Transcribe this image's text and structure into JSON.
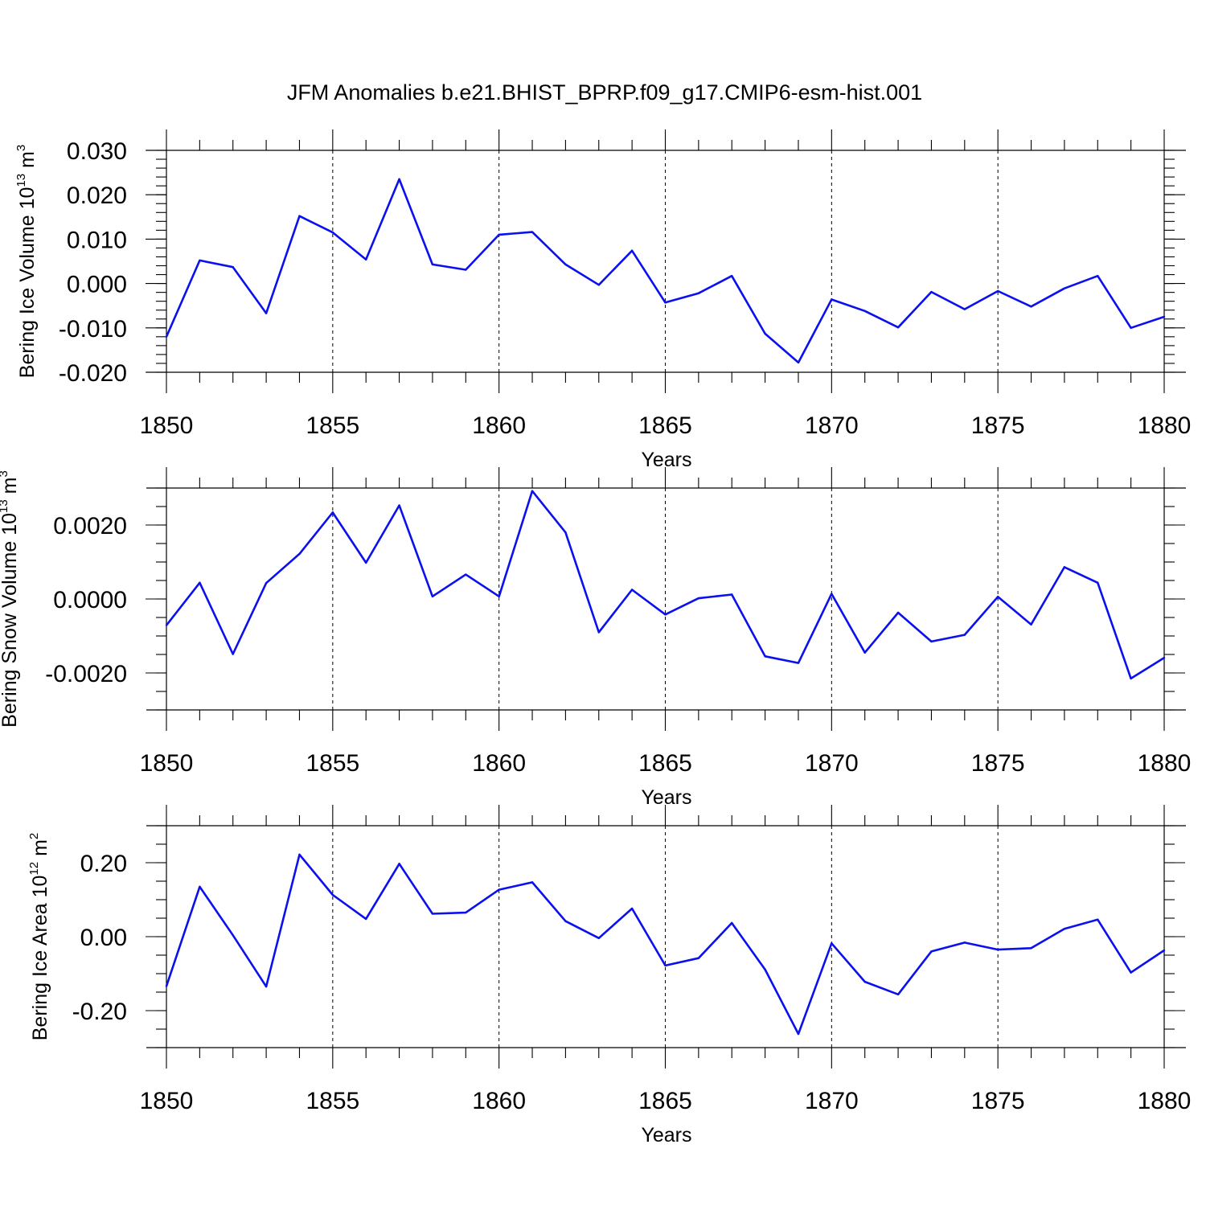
{
  "chart_data": {
    "type": "line",
    "title": "JFM Anomalies b.e21.BHIST_BPRP.f09_g17.CMIP6-esm-hist.001",
    "colors": {
      "line": "#0a10ee",
      "axes": "#000000"
    },
    "panels": [
      {
        "id": "ice-volume",
        "ylabel": "Bering Ice Volume 10",
        "ylabel_exp": "13",
        "ylabel_unit": "m",
        "ylabel_unit_exp": "3",
        "xlabel": "Years",
        "xlim": [
          1850,
          1880
        ],
        "ylim": [
          -0.02,
          0.03
        ],
        "xticks": [
          1850,
          1855,
          1860,
          1865,
          1870,
          1875,
          1880
        ],
        "xtick_labels": [
          "1850",
          "1855",
          "1860",
          "1865",
          "1870",
          "1875",
          "1880"
        ],
        "yticks": [
          -0.02,
          -0.01,
          0.0,
          0.01,
          0.02,
          0.03
        ],
        "ytick_labels": [
          "-0.020",
          "-0.010",
          "0.000",
          "0.010",
          "0.020",
          "0.030"
        ],
        "yminor_step": 0.002,
        "grid_x": true,
        "x": [
          1850,
          1851,
          1852,
          1853,
          1854,
          1855,
          1856,
          1857,
          1858,
          1859,
          1860,
          1861,
          1862,
          1863,
          1864,
          1865,
          1866,
          1867,
          1868,
          1869,
          1870,
          1871,
          1872,
          1873,
          1874,
          1875,
          1876,
          1877,
          1878,
          1879,
          1880
        ],
        "values": [
          -0.012,
          0.0052,
          0.0037,
          -0.0067,
          0.0152,
          0.0115,
          0.0054,
          0.0235,
          0.0043,
          0.0031,
          0.011,
          0.0116,
          0.0043,
          -0.0003,
          0.0074,
          -0.0043,
          -0.0022,
          0.0017,
          -0.0113,
          -0.0178,
          -0.0036,
          -0.0062,
          -0.0099,
          -0.0019,
          -0.0058,
          -0.0017,
          -0.0052,
          -0.0011,
          0.0017,
          -0.01,
          -0.0075
        ]
      },
      {
        "id": "snow-volume",
        "ylabel": "Bering Snow Volume 10",
        "ylabel_exp": "13",
        "ylabel_unit": "m",
        "ylabel_unit_exp": "3",
        "xlabel": "Years",
        "xlim": [
          1850,
          1880
        ],
        "ylim": [
          -0.003,
          0.003
        ],
        "xticks": [
          1850,
          1855,
          1860,
          1865,
          1870,
          1875,
          1880
        ],
        "xtick_labels": [
          "1850",
          "1855",
          "1860",
          "1865",
          "1870",
          "1875",
          "1880"
        ],
        "yticks": [
          -0.002,
          0.0,
          0.002
        ],
        "ytick_labels": [
          "-0.0020",
          "0.0000",
          "0.0020"
        ],
        "yminor_step": 0.0005,
        "grid_x": true,
        "x": [
          1850,
          1851,
          1852,
          1853,
          1854,
          1855,
          1856,
          1857,
          1858,
          1859,
          1860,
          1861,
          1862,
          1863,
          1864,
          1865,
          1866,
          1867,
          1868,
          1869,
          1870,
          1871,
          1872,
          1873,
          1874,
          1875,
          1876,
          1877,
          1878,
          1879,
          1880
        ],
        "values": [
          -0.00071,
          0.00044,
          -0.00149,
          0.00043,
          0.00122,
          0.00234,
          0.00098,
          0.00253,
          7e-05,
          0.00066,
          7e-05,
          0.00292,
          0.0018,
          -0.0009,
          0.00025,
          -0.00042,
          2e-05,
          0.00012,
          -0.00155,
          -0.00173,
          0.00014,
          -0.00145,
          -0.00037,
          -0.00115,
          -0.00097,
          6e-05,
          -0.00069,
          0.00086,
          0.00044,
          -0.00215,
          -0.00159
        ]
      },
      {
        "id": "ice-area",
        "ylabel": "Bering Ice Area 10",
        "ylabel_exp": "12",
        "ylabel_unit": "m",
        "ylabel_unit_exp": "2",
        "xlabel": "Years",
        "xlim": [
          1850,
          1880
        ],
        "ylim": [
          -0.3,
          0.3
        ],
        "xticks": [
          1850,
          1855,
          1860,
          1865,
          1870,
          1875,
          1880
        ],
        "xtick_labels": [
          "1850",
          "1855",
          "1860",
          "1865",
          "1870",
          "1875",
          "1880"
        ],
        "yticks": [
          -0.2,
          0.0,
          0.2
        ],
        "ytick_labels": [
          "-0.20",
          "0.00",
          "0.20"
        ],
        "yminor_step": 0.05,
        "grid_x": true,
        "x": [
          1850,
          1851,
          1852,
          1853,
          1854,
          1855,
          1856,
          1857,
          1858,
          1859,
          1860,
          1861,
          1862,
          1863,
          1864,
          1865,
          1866,
          1867,
          1868,
          1869,
          1870,
          1871,
          1872,
          1873,
          1874,
          1875,
          1876,
          1877,
          1878,
          1879,
          1880
        ],
        "values": [
          -0.134,
          0.135,
          0.004,
          -0.135,
          0.222,
          0.113,
          0.048,
          0.197,
          0.062,
          0.065,
          0.127,
          0.147,
          0.042,
          -0.004,
          0.076,
          -0.078,
          -0.058,
          0.037,
          -0.089,
          -0.263,
          -0.018,
          -0.122,
          -0.156,
          -0.04,
          -0.016,
          -0.035,
          -0.031,
          0.021,
          0.046,
          -0.097,
          -0.037
        ]
      }
    ]
  }
}
